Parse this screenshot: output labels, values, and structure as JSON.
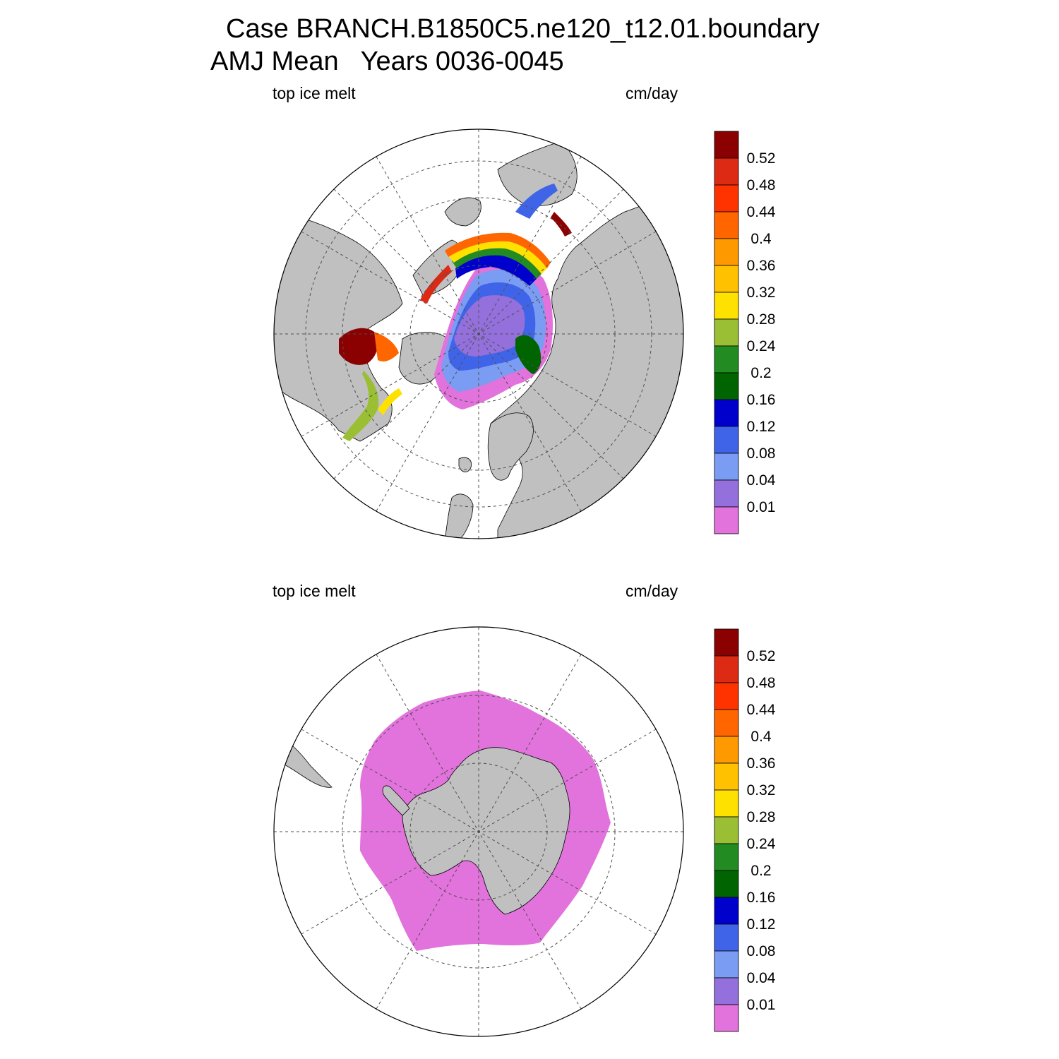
{
  "header": {
    "title": "Case BRANCH.B1850C5.ne120_t12.01.boundary",
    "subtitle": "AMJ Mean   Years 0036-0045"
  },
  "panels": [
    {
      "variable_label": "top ice melt",
      "units_label": "cm/day",
      "hemisphere": "north"
    },
    {
      "variable_label": "top ice melt",
      "units_label": "cm/day",
      "hemisphere": "south"
    }
  ],
  "colorbar": {
    "levels": [
      "0.01",
      "0.04",
      "0.08",
      "0.12",
      "0.16",
      "0.2",
      "0.24",
      "0.28",
      "0.32",
      "0.36",
      "0.4",
      "0.44",
      "0.48",
      "0.52"
    ],
    "colors": [
      "#e272dc",
      "#9370db",
      "#7a9cf2",
      "#4064e8",
      "#0000cd",
      "#006400",
      "#228b22",
      "#9abf35",
      "#ffe100",
      "#ffc100",
      "#ff9900",
      "#ff6600",
      "#ff3300",
      "#dc2a14",
      "#8b0000"
    ]
  },
  "style": {
    "land_color": "#c0c0c0",
    "ocean_color": "#ffffff",
    "grid_color": "#505050"
  }
}
